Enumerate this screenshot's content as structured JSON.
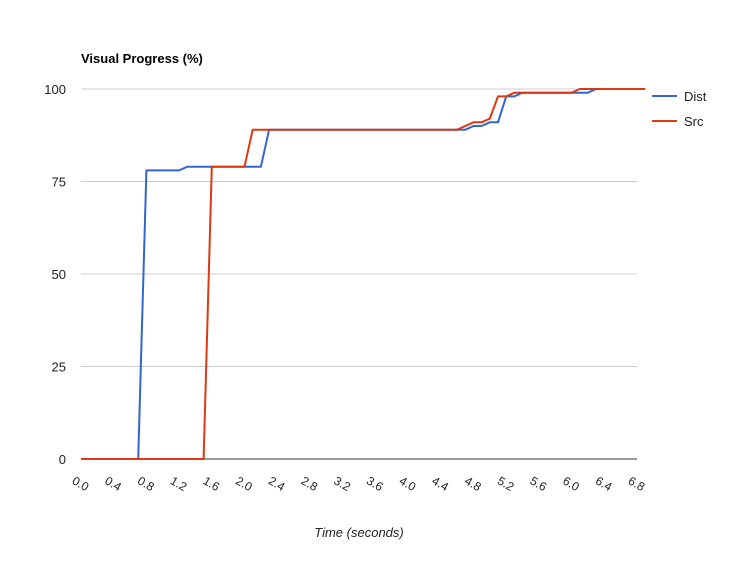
{
  "chart_data": {
    "type": "line",
    "title": "Visual Progress (%)",
    "xlabel": "Time (seconds)",
    "ylabel": "",
    "xlim": [
      0,
      6.8
    ],
    "ylim": [
      0,
      100
    ],
    "x_ticks": [
      "0.0",
      "0.4",
      "0.8",
      "1.2",
      "1.6",
      "2.0",
      "2.4",
      "2.8",
      "3.2",
      "3.6",
      "4.0",
      "4.4",
      "4.8",
      "5.2",
      "5.6",
      "6.0",
      "6.4",
      "6.8"
    ],
    "y_ticks": [
      "0",
      "25",
      "50",
      "75",
      "100"
    ],
    "grid": true,
    "legend": "right",
    "series": [
      {
        "name": "Dist",
        "color": "#3366cc",
        "points": [
          [
            0.0,
            0
          ],
          [
            0.7,
            0
          ],
          [
            0.8,
            78
          ],
          [
            1.2,
            78
          ],
          [
            1.3,
            79
          ],
          [
            1.9,
            79
          ],
          [
            2.2,
            79
          ],
          [
            2.3,
            89
          ],
          [
            4.7,
            89
          ],
          [
            4.8,
            90
          ],
          [
            4.9,
            90
          ],
          [
            5.0,
            91
          ],
          [
            5.1,
            91
          ],
          [
            5.2,
            98
          ],
          [
            5.3,
            98
          ],
          [
            5.4,
            99
          ],
          [
            6.0,
            99
          ],
          [
            6.2,
            99
          ],
          [
            6.3,
            100
          ],
          [
            6.9,
            100
          ]
        ]
      },
      {
        "name": "Src",
        "color": "#dc3912",
        "points": [
          [
            0.0,
            0
          ],
          [
            1.5,
            0
          ],
          [
            1.6,
            79
          ],
          [
            2.0,
            79
          ],
          [
            2.1,
            89
          ],
          [
            4.6,
            89
          ],
          [
            4.7,
            90
          ],
          [
            4.8,
            91
          ],
          [
            4.9,
            91
          ],
          [
            5.0,
            92
          ],
          [
            5.1,
            98
          ],
          [
            5.2,
            98
          ],
          [
            5.3,
            99
          ],
          [
            6.0,
            99
          ],
          [
            6.1,
            100
          ],
          [
            6.9,
            100
          ]
        ]
      }
    ]
  }
}
